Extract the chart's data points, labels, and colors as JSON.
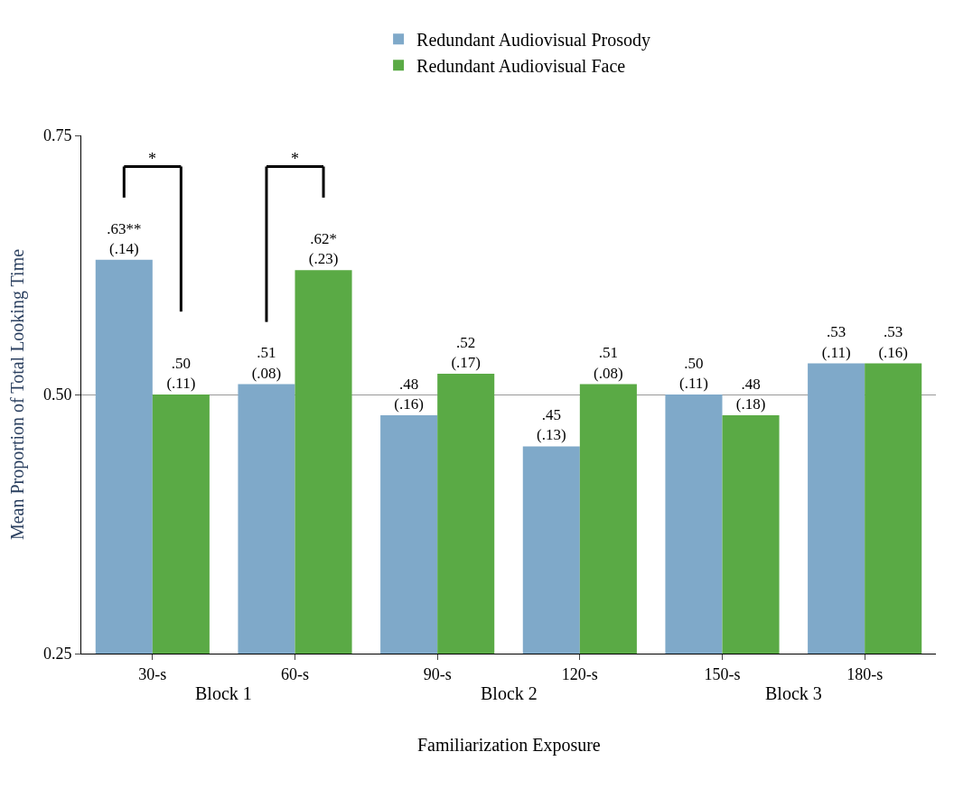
{
  "chart_data": {
    "type": "bar",
    "categories": [
      "30-s",
      "60-s",
      "90-s",
      "120-s",
      "150-s",
      "180-s"
    ],
    "series": [
      {
        "name": "Redundant Audiovisual Prosody",
        "color": "#7fa9c9",
        "values": [
          0.63,
          0.51,
          0.48,
          0.45,
          0.5,
          0.53
        ],
        "value_labels": [
          ".63**\n(.14)",
          ".51\n(.08)",
          ".48\n(.16)",
          ".45\n(.13)",
          ".50\n(.11)",
          ".53\n(.11)"
        ]
      },
      {
        "name": "Redundant Audiovisual Face",
        "color": "#5aaa45",
        "values": [
          0.5,
          0.62,
          0.52,
          0.51,
          0.48,
          0.53
        ],
        "value_labels": [
          ".50\n(.11)",
          ".62*\n(.23)",
          ".52\n(.17)",
          ".51\n(.08)",
          ".48\n(.18)",
          ".53\n(.16)"
        ]
      }
    ],
    "xlabel": "Familiarization Exposure",
    "ylabel": "Mean Proportion of Total Looking Time",
    "ylim": [
      0.25,
      0.75
    ],
    "yticks": [
      {
        "value": 0.25,
        "label": "0.25"
      },
      {
        "value": 0.5,
        "label": "0.50"
      },
      {
        "value": 0.75,
        "label": "0.75"
      }
    ],
    "grid": "y",
    "legend": "top",
    "annotations": [
      "*",
      "*",
      "Block 1",
      "Block 2",
      "Block 3"
    ]
  }
}
